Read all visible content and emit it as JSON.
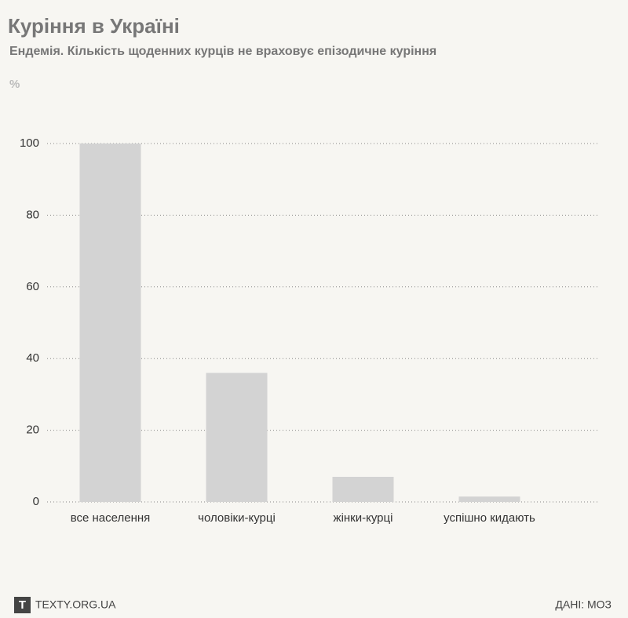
{
  "chart_data": {
    "type": "bar",
    "title": "Куріння в Україні",
    "subtitle": "Ендемія. Кількість щоденних курців не враховує епізодичне куріння",
    "y_label": "%",
    "categories": [
      "все населення",
      "чоловіки-курці",
      "жінки-курці",
      "успішно кидають"
    ],
    "values": [
      100,
      36,
      7,
      1.5
    ],
    "color": "#d3d3d3",
    "ylim": [
      0,
      100
    ],
    "yticks": [
      0,
      20,
      40,
      60,
      80,
      100
    ],
    "grid": true
  },
  "footer": {
    "logo": "T",
    "site": "TEXTY.ORG.UA",
    "source": "ДАНІ: МОЗ"
  }
}
